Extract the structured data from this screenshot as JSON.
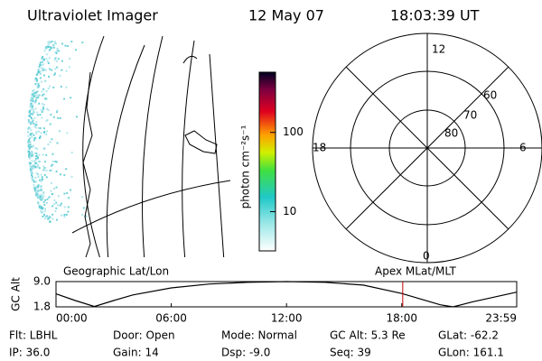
{
  "header": {
    "title": "Ultraviolet Imager",
    "date": "12 May 07",
    "time": "18:03:39 UT"
  },
  "colorbar": {
    "label": "photon cm⁻²s⁻¹",
    "lim": [
      3.2,
      575
    ],
    "log": true,
    "ticks": [
      10,
      100
    ]
  },
  "polar": {
    "mlt_labels": [
      "12",
      "18",
      "6",
      "0"
    ],
    "lat_labels": [
      "60",
      "70",
      "80"
    ]
  },
  "chart_data": {
    "type": "line",
    "left_label": "Geographic Lat/Lon",
    "right_label": "Apex MLat/MLT",
    "y_label": "GC Alt",
    "x": [
      0,
      60,
      120,
      180,
      240,
      360,
      480,
      600,
      720,
      840,
      960,
      1080,
      1140,
      1200,
      1240,
      1300,
      1380,
      1439
    ],
    "series": [
      {
        "color": "#000000",
        "values": [
          5.5,
          3.6,
          1.9,
          3.6,
          5.2,
          7.2,
          8.3,
          8.8,
          9.0,
          8.8,
          8.0,
          5.6,
          4.0,
          2.4,
          1.8,
          3.2,
          4.8,
          6.0
        ]
      }
    ],
    "xlim": [
      0,
      1439
    ],
    "xticks": [
      {
        "value": 0,
        "label": "00:00"
      },
      {
        "value": 360,
        "label": "06:00"
      },
      {
        "value": 720,
        "label": "12:00"
      },
      {
        "value": 1080,
        "label": "18:00"
      },
      {
        "value": 1439,
        "label": "23:59"
      }
    ],
    "ylim": [
      1.8,
      9.0
    ],
    "yticks": [
      {
        "value": 9.0,
        "label": "9.0"
      },
      {
        "value": 1.8,
        "label": "1.8"
      }
    ],
    "marker_x": 1083,
    "marker_color": "#c00000"
  },
  "footer": {
    "rows": [
      [
        "Flt: LBHL",
        "Door: Open",
        "Mode: Normal",
        "GC Alt: 5.3 Re",
        "GLat: -62.2"
      ],
      [
        "IP: 36.0",
        "Gain: 14",
        "Dsp: -9.0",
        "Seq: 39",
        "GLon: 161.1"
      ]
    ]
  }
}
